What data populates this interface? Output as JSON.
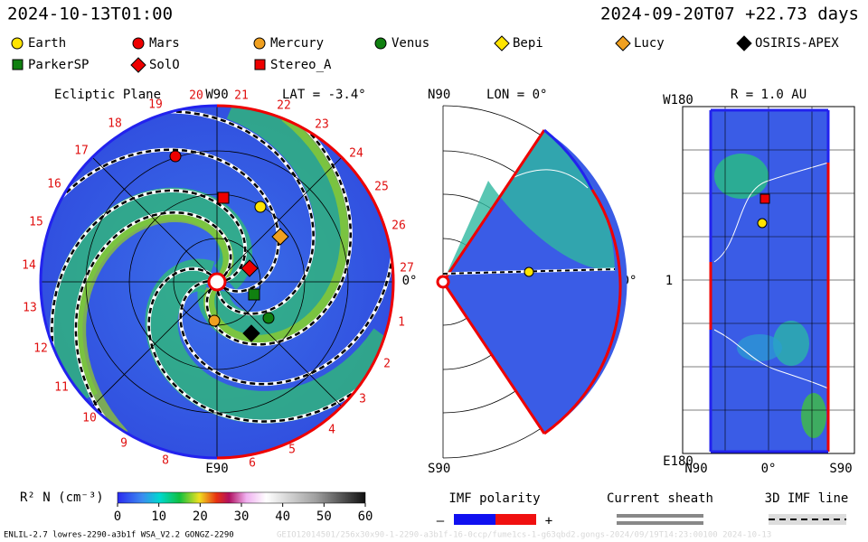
{
  "header": {
    "time": "2024-10-13T01:00",
    "run": "2024-09-20T07 +22.73 days"
  },
  "legend": [
    "Earth",
    "Mars",
    "Mercury",
    "Venus",
    "Bepi",
    "Lucy",
    "OSIRIS-APEX",
    "ParkerSP",
    "SolO",
    "Stereo_A"
  ],
  "ecliptic": {
    "title": "Ecliptic Plane",
    "top": "W90",
    "lat": "LAT = -3.4°",
    "bottom": "E90",
    "right": "0°",
    "numbers": [
      "27",
      "1",
      "2",
      "3",
      "4",
      "5",
      "6",
      "8",
      "9",
      "10",
      "11",
      "12",
      "13",
      "14",
      "15",
      "16",
      "17",
      "18",
      "19",
      "20",
      "21",
      "22",
      "23",
      "24",
      "25",
      "26"
    ]
  },
  "meridional": {
    "top": "N90",
    "lon": "LON = 0°",
    "bottom": "S90",
    "right": "0°"
  },
  "radial": {
    "top": "W180",
    "r": "R = 1.0 AU",
    "mid": "1",
    "bottom": "E180",
    "x_left": "N90",
    "x_mid": "0°",
    "x_right": "S90"
  },
  "colorbar": {
    "label": "R² N (cm⁻³)",
    "range": [
      0,
      60
    ],
    "ticks": [
      0,
      10,
      20,
      30,
      40,
      50,
      60
    ]
  },
  "imf": {
    "title": "IMF polarity",
    "minus": "–",
    "plus": "+"
  },
  "sheath": "Current sheath",
  "imfline": "3D IMF line",
  "footer": "ENLIL-2.7 lowres-2290-a3b1f WSA_V2.2 GONGZ-2290",
  "footer_faded": "GEIO12014501/256x30x90-1-2290-a3b1f-16-0ccp/fume1cs-1-g63qbd2.gongs-2024/09/19T14:23:00100    2024-10-13"
}
